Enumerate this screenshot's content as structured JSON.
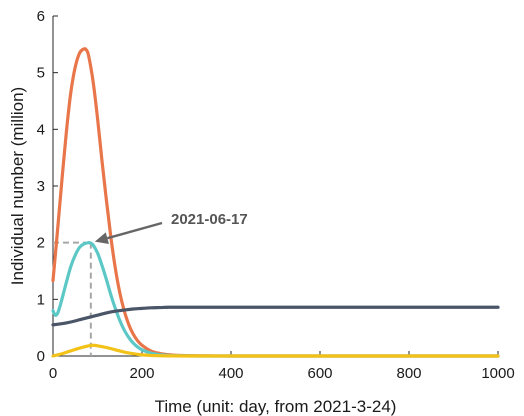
{
  "chart_data": {
    "type": "line",
    "title": "",
    "xlabel": "Time (unit: day, from 2021-3-24)",
    "ylabel": "Individual number (million)",
    "xlim": [
      0,
      1000
    ],
    "ylim": [
      0,
      6
    ],
    "xticks": [
      0,
      200,
      400,
      600,
      800,
      1000
    ],
    "yticks": [
      0,
      1,
      2,
      3,
      4,
      5,
      6
    ],
    "grid": false,
    "legend": "none",
    "series": [
      {
        "color": "#e8764a",
        "x": [
          0,
          10,
          20,
          30,
          40,
          50,
          60,
          70,
          75,
          80,
          90,
          100,
          110,
          120,
          130,
          140,
          150,
          160,
          170,
          180,
          190,
          200,
          220,
          240,
          260,
          280,
          300,
          350,
          400,
          500,
          600,
          700,
          800,
          900,
          1000
        ],
        "y": [
          1.33,
          2.2,
          3.1,
          3.95,
          4.65,
          5.1,
          5.35,
          5.42,
          5.4,
          5.3,
          4.85,
          4.2,
          3.45,
          2.75,
          2.1,
          1.55,
          1.12,
          0.8,
          0.56,
          0.39,
          0.27,
          0.19,
          0.09,
          0.045,
          0.022,
          0.011,
          0.006,
          0.002,
          0.0,
          0.0,
          0.0,
          0.0,
          0.0,
          0.0,
          0.0
        ]
      },
      {
        "color": "#5bc8c6",
        "x": [
          0,
          5,
          10,
          15,
          20,
          30,
          40,
          50,
          60,
          70,
          80,
          85,
          90,
          100,
          110,
          120,
          130,
          140,
          150,
          160,
          170,
          180,
          190,
          200,
          220,
          240,
          260,
          280,
          300,
          350,
          400,
          500,
          600,
          700,
          800,
          900,
          1000
        ],
        "y": [
          0.8,
          0.72,
          0.75,
          0.86,
          1.0,
          1.3,
          1.58,
          1.78,
          1.92,
          1.98,
          2.0,
          1.99,
          1.96,
          1.82,
          1.6,
          1.35,
          1.08,
          0.84,
          0.63,
          0.46,
          0.33,
          0.23,
          0.16,
          0.11,
          0.05,
          0.022,
          0.01,
          0.005,
          0.002,
          0.0,
          0.0,
          0.0,
          0.0,
          0.0,
          0.0,
          0.0,
          0.0
        ]
      },
      {
        "color": "#f2c218",
        "x": [
          0,
          20,
          40,
          60,
          80,
          90,
          100,
          120,
          140,
          160,
          180,
          200,
          220,
          240,
          260,
          300,
          400,
          500,
          600,
          700,
          800,
          900,
          1000
        ],
        "y": [
          0.0,
          0.04,
          0.09,
          0.14,
          0.18,
          0.19,
          0.18,
          0.15,
          0.11,
          0.07,
          0.04,
          0.02,
          0.01,
          0.005,
          0.002,
          0.0,
          0.0,
          0.0,
          0.0,
          0.0,
          0.0,
          0.0,
          0.0
        ]
      },
      {
        "color": "#4a5568",
        "x": [
          0,
          20,
          40,
          60,
          80,
          100,
          120,
          140,
          160,
          180,
          200,
          220,
          240,
          260,
          280,
          300,
          350,
          400,
          500,
          600,
          700,
          800,
          900,
          1000
        ],
        "y": [
          0.55,
          0.57,
          0.6,
          0.64,
          0.68,
          0.72,
          0.76,
          0.79,
          0.81,
          0.83,
          0.84,
          0.85,
          0.855,
          0.86,
          0.86,
          0.86,
          0.86,
          0.86,
          0.86,
          0.86,
          0.86,
          0.86,
          0.86,
          0.86
        ]
      }
    ],
    "annotations": [
      {
        "text": "2021-06-17",
        "x": 85,
        "y": 2.0,
        "arrow_color": "#666666"
      }
    ],
    "guides": {
      "x": 85,
      "y": 2.0,
      "color": "#a6a6a6"
    }
  }
}
